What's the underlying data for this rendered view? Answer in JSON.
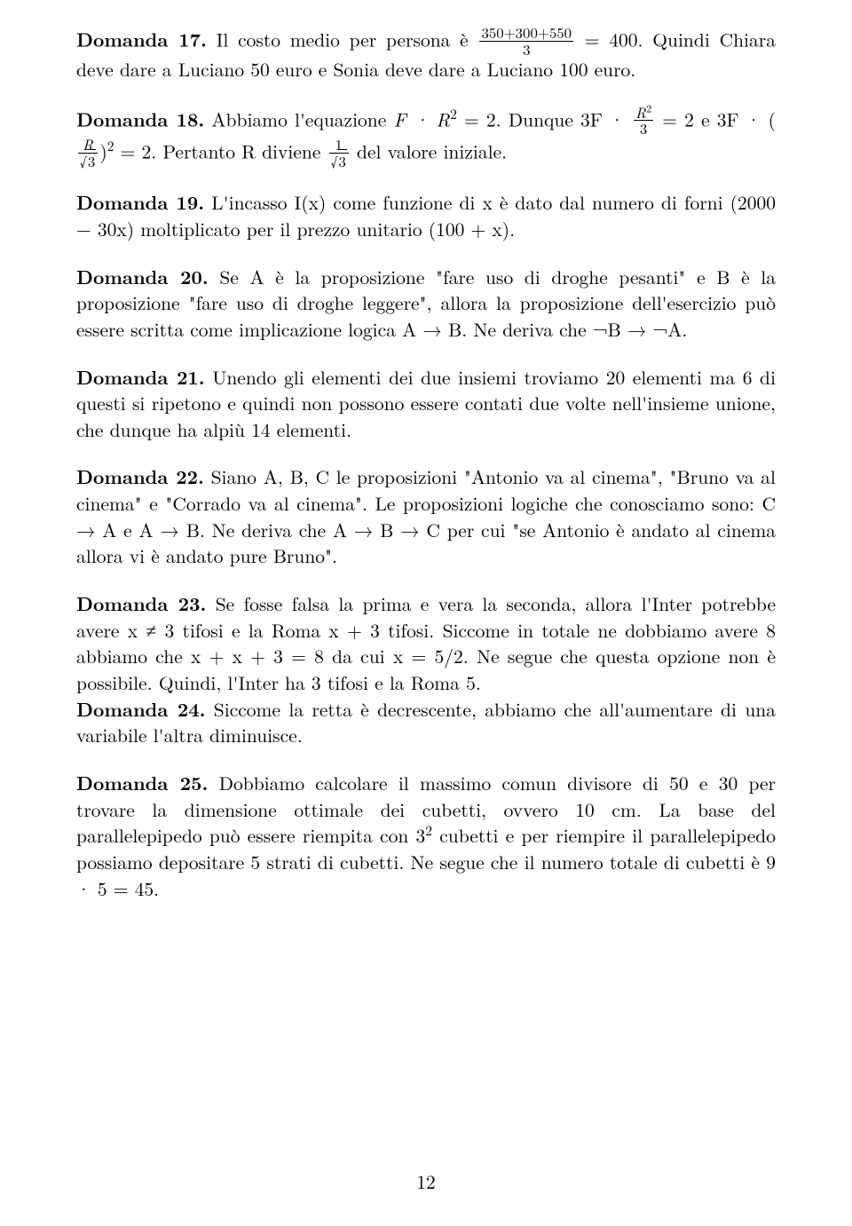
{
  "page_number": "12",
  "d17": {
    "label": "Domanda 17.",
    "t1": "Il costo medio per persona è",
    "frac_num": "350+300+550",
    "frac_den": "3",
    "t2": "= 400.  Quindi Chiara deve dare a Luciano 50 euro e Sonia deve dare a Luciano 100 euro."
  },
  "d18": {
    "label": "Domanda 18.",
    "t1": "Abbiamo l'equazione ",
    "eq1a": "F · R",
    "eq1b": " = 2.  Dunque 3F · ",
    "frac2_num": "R",
    "frac2_den": "3",
    "t2": " = 2 e 3F · (",
    "frac3_num": "R",
    "t3": ")",
    "t4": " = 2.  Pertanto R diviene ",
    "frac4_num": "1",
    "t5": " del valore iniziale."
  },
  "d19": {
    "label": "Domanda 19.",
    "t1": "L'incasso I(x) come funzione di x è dato dal numero di forni (2000 − 30x) moltiplicato per il prezzo unitario (100 + x)."
  },
  "d20": {
    "label": "Domanda 20.",
    "t1": "Se A è la proposizione \"fare uso di droghe pesanti\" e B è la proposizione \"fare uso di droghe leggere\", allora la proposizione dell'esercizio può essere scritta come implicazione logica A → B.  Ne deriva che ¬B → ¬A."
  },
  "d21": {
    "label": "Domanda 21.",
    "t1": "Unendo gli elementi dei due insiemi troviamo 20 elementi ma 6 di questi si ripetono e quindi non possono essere contati due volte nell'insieme unione, che dunque ha alpiù 14 elementi."
  },
  "d22": {
    "label": "Domanda 22.",
    "t1": "Siano A, B, C le proposizioni \"Antonio va al cinema\", \"Bruno va al cinema\" e \"Corrado va al cinema\".  Le proposizioni logiche che conosciamo sono: C → A e A → B.  Ne deriva che A → B → C per cui \"se Antonio è andato al cinema allora vi è andato pure Bruno\"."
  },
  "d23": {
    "label": "Domanda 23.",
    "t1": "Se fosse falsa la prima e vera la seconda, allora l'Inter potrebbe avere x ≠ 3 tifosi e la Roma x + 3 tifosi.  Siccome in totale ne dobbiamo avere 8 abbiamo che x + x + 3 = 8 da cui x = 5/2.  Ne segue che questa opzione non è possibile.  Quindi, l'Inter ha 3 tifosi e la Roma 5."
  },
  "d24": {
    "label": "Domanda 24.",
    "t1": "Siccome la retta è decrescente, abbiamo che all'aumentare di una variabile l'altra diminuisce."
  },
  "d25": {
    "label": "Domanda 25.",
    "t1": "Dobbiamo calcolare il massimo comun divisore di 50 e 30 per trovare la dimensione ottimale dei cubetti, ovvero 10 cm.  La base del parallelepipedo può essere riempita con 3",
    "t2": " cubetti e per riempire il parallelepipedo possiamo depositare 5 strati di cubetti.  Ne segue che il numero totale di cubetti è 9 · 5 = 45."
  }
}
